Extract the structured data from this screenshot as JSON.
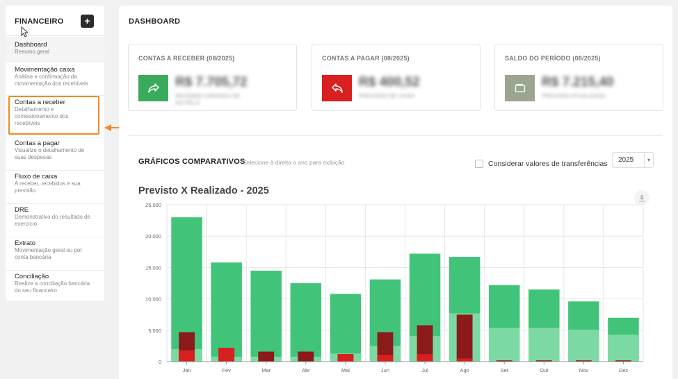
{
  "sidebar": {
    "title": "FINANCEIRO",
    "add_label": "+",
    "items": [
      {
        "label": "Dashboard",
        "desc": "Resumo geral"
      },
      {
        "label": "Movimentação caixa",
        "desc": "Análise e confirmação da movimentação dos recebíveis"
      },
      {
        "label": "Contas a receber",
        "desc": "Detalhamento e comissionamento dos recebíveis"
      },
      {
        "label": "Contas a pagar",
        "desc": "Visualize o detalhamento de suas despesas"
      },
      {
        "label": "Fluxo de caixa",
        "desc": "A receber, recebidos e sua previsão"
      },
      {
        "label": "DRE",
        "desc": "Demonstrativo do resultado de exercício"
      },
      {
        "label": "Extrato",
        "desc": "Movimentação geral ou por conta bancária"
      },
      {
        "label": "Conciliação",
        "desc": "Realize a conciliação bancária do seu financeiro"
      }
    ]
  },
  "main": {
    "title": "DASHBOARD",
    "cards": [
      {
        "title": "CONTAS A RECEBER (08/2025)",
        "value": "R$ 7.705,72",
        "sub": "RECEBER CARANGA DE NO PELO",
        "color": "#3aaa5c",
        "icon": "share-arrow-icon"
      },
      {
        "title": "CONTAS A PAGAR (08/2025)",
        "value": "R$ 400,52",
        "sub": "PREVISÃO DE CAIXA",
        "color": "#d7201f",
        "icon": "reply-arrow-icon"
      },
      {
        "title": "SALDO DO PERÍODO (08/2025)",
        "value": "R$ 7.215,40",
        "sub": "PREVISÃO ATUALIZADA",
        "color": "#9aa690",
        "icon": "wallet-icon"
      }
    ],
    "section_title": "GRÁFICOS COMPARATIVOS",
    "section_hint": "Selecione à direita o ano para exibição",
    "transfer_label": "Considerar valores de transferências",
    "year": "2025",
    "chart_title": "Previsto X Realizado - 2025"
  },
  "chart_data": {
    "type": "bar",
    "title": "Previsto X Realizado - 2025",
    "categories": [
      "Jan",
      "Fev",
      "Mar",
      "Abr",
      "Mai",
      "Jun",
      "Jul",
      "Ago",
      "Set",
      "Out",
      "Nov",
      "Dez"
    ],
    "ylim": [
      0,
      25000
    ],
    "yticks": [
      "0",
      "5.000",
      "10.000",
      "15.000",
      "20.000",
      "25.000"
    ],
    "series": [
      {
        "values": [
          23000,
          15800,
          14500,
          12500,
          10800,
          13100,
          17200,
          16700,
          12200,
          11500,
          9600,
          7000
        ],
        "color": "#41c47a",
        "width": "wide"
      },
      {
        "values": [
          2000,
          800,
          800,
          800,
          1300,
          2500,
          4100,
          7700,
          5400,
          5400,
          5100,
          4300
        ],
        "color": "#7dd9a3",
        "width": "wide"
      },
      {
        "values": [
          4700,
          2200,
          1600,
          1600,
          1200,
          4700,
          5800,
          7500,
          200,
          200,
          200,
          200
        ],
        "color": "#8b1a1a",
        "width": "narrow"
      },
      {
        "values": [
          1800,
          2200,
          0,
          0,
          1200,
          1100,
          1200,
          500,
          0,
          0,
          0,
          0
        ],
        "color": "#d7201f",
        "width": "narrow"
      }
    ]
  }
}
